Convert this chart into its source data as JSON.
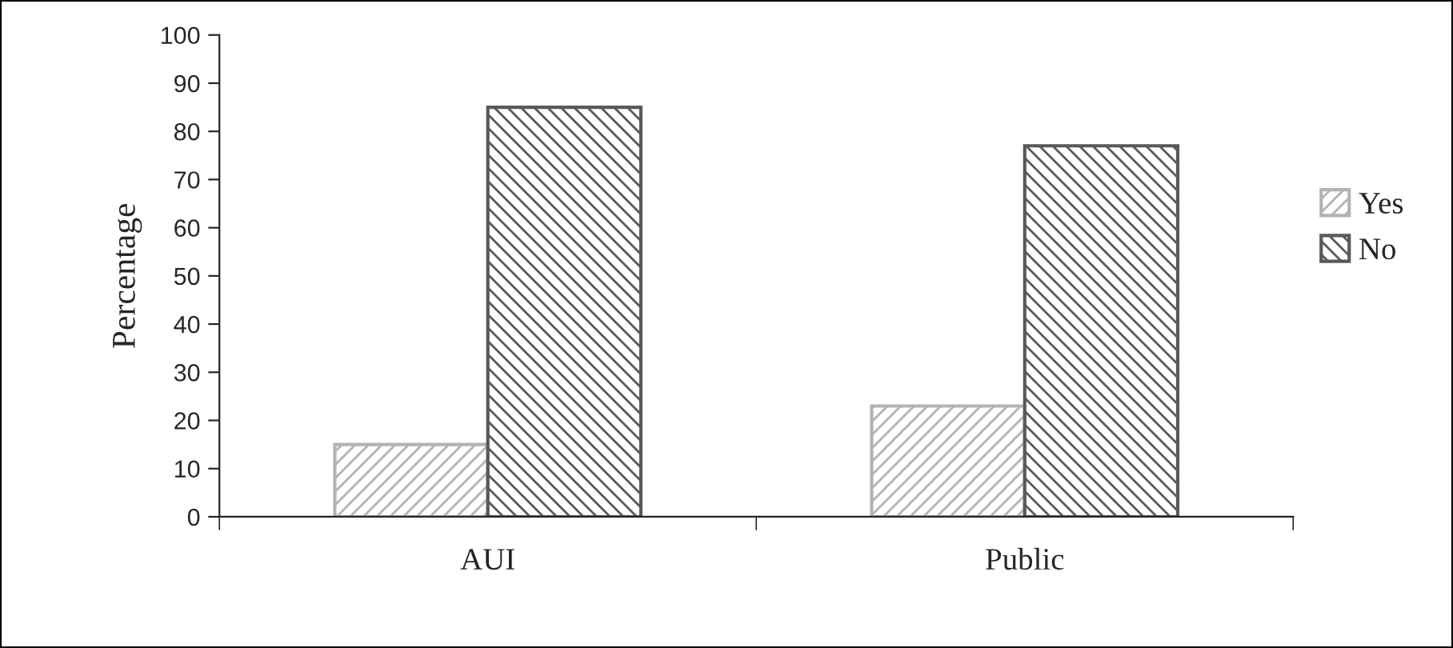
{
  "chart_data": {
    "type": "bar",
    "ylabel": "Percentage",
    "categories": [
      "AUI",
      "Public"
    ],
    "series": [
      {
        "name": "Yes",
        "color": "#b3b3b3",
        "values": [
          15,
          23
        ]
      },
      {
        "name": "No",
        "color": "#595959",
        "values": [
          85,
          77
        ]
      }
    ],
    "ylim": [
      0,
      100
    ],
    "yticks": [
      0,
      10,
      20,
      30,
      40,
      50,
      60,
      70,
      80,
      90,
      100
    ],
    "grid": false,
    "legend": "right"
  }
}
